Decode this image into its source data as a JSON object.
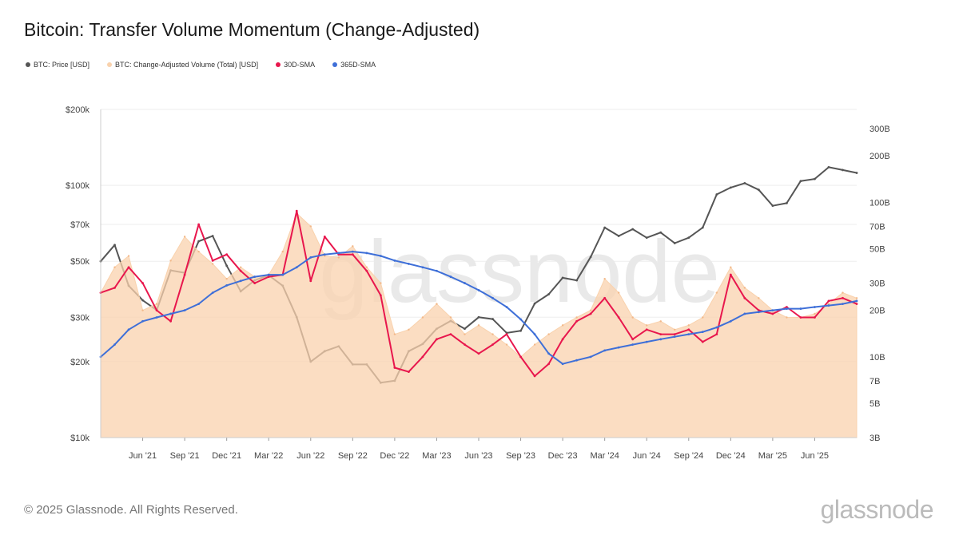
{
  "title": "Bitcoin: Transfer Volume Momentum (Change-Adjusted)",
  "legend": [
    {
      "label": "BTC: Price [USD]",
      "color": "#555555"
    },
    {
      "label": "BTC: Change-Adjusted Volume (Total) [USD]",
      "color": "#f9d2ad"
    },
    {
      "label": "30D-SMA",
      "color": "#e8174d"
    },
    {
      "label": "365D-SMA",
      "color": "#3e6fd8"
    }
  ],
  "footer": "© 2025 Glassnode. All Rights Reserved.",
  "brand": "glassnode",
  "watermark": "glassnode",
  "chart_data": {
    "type": "line",
    "title": "Bitcoin: Transfer Volume Momentum (Change-Adjusted)",
    "x_ticks": [
      "Jun '21",
      "Sep '21",
      "Dec '21",
      "Mar '22",
      "Jun '22",
      "Sep '22",
      "Dec '22",
      "Mar '23",
      "Jun '23",
      "Sep '23",
      "Dec '23",
      "Mar '24",
      "Jun '24",
      "Sep '24",
      "Dec '24",
      "Mar '25",
      "Jun '25"
    ],
    "x_range": [
      "2021-03",
      "2025-09"
    ],
    "y_left": {
      "scale": "log",
      "range": [
        10000,
        200000
      ],
      "ticks": [
        {
          "v": 10000,
          "l": "$10k"
        },
        {
          "v": 20000,
          "l": "$20k"
        },
        {
          "v": 30000,
          "l": "$30k"
        },
        {
          "v": 50000,
          "l": "$50k"
        },
        {
          "v": 70000,
          "l": "$70k"
        },
        {
          "v": 100000,
          "l": "$100k"
        },
        {
          "v": 200000,
          "l": "$200k"
        }
      ]
    },
    "y_right": {
      "scale": "log",
      "range": [
        3,
        400
      ],
      "ticks": [
        {
          "v": 3,
          "l": "3B"
        },
        {
          "v": 5,
          "l": "5B"
        },
        {
          "v": 7,
          "l": "7B"
        },
        {
          "v": 10,
          "l": "10B"
        },
        {
          "v": 20,
          "l": "20B"
        },
        {
          "v": 30,
          "l": "30B"
        },
        {
          "v": 50,
          "l": "50B"
        },
        {
          "v": 70,
          "l": "70B"
        },
        {
          "v": 100,
          "l": "100B"
        },
        {
          "v": 200,
          "l": "200B"
        },
        {
          "v": 300,
          "l": "300B"
        }
      ]
    },
    "grid": true,
    "series": [
      {
        "name": "BTC: Price [USD]",
        "axis": "left",
        "color": "#555555",
        "x": [
          "2021-03",
          "2021-04",
          "2021-05",
          "2021-06",
          "2021-07",
          "2021-08",
          "2021-09",
          "2021-10",
          "2021-11",
          "2021-12",
          "2022-01",
          "2022-02",
          "2022-03",
          "2022-04",
          "2022-05",
          "2022-06",
          "2022-07",
          "2022-08",
          "2022-09",
          "2022-10",
          "2022-11",
          "2022-12",
          "2023-01",
          "2023-02",
          "2023-03",
          "2023-04",
          "2023-05",
          "2023-06",
          "2023-07",
          "2023-08",
          "2023-09",
          "2023-10",
          "2023-11",
          "2023-12",
          "2024-01",
          "2024-02",
          "2024-03",
          "2024-04",
          "2024-05",
          "2024-06",
          "2024-07",
          "2024-08",
          "2024-09",
          "2024-10",
          "2024-11",
          "2024-12",
          "2025-01",
          "2025-02",
          "2025-03",
          "2025-04",
          "2025-05",
          "2025-06",
          "2025-07",
          "2025-08",
          "2025-09"
        ],
        "y": [
          50000,
          58000,
          40000,
          35000,
          32000,
          46000,
          45000,
          60000,
          63000,
          48000,
          38000,
          42000,
          44000,
          40000,
          30000,
          20000,
          22000,
          23000,
          19500,
          19500,
          16500,
          16800,
          22000,
          23500,
          27000,
          29000,
          27000,
          30000,
          29500,
          26000,
          26500,
          34000,
          37000,
          43000,
          42000,
          52000,
          68000,
          63000,
          67000,
          62000,
          65000,
          59000,
          62000,
          68000,
          92000,
          98000,
          102000,
          96000,
          83000,
          85000,
          104000,
          106000,
          118000,
          115000,
          112000
        ]
      },
      {
        "name": "BTC: Change-Adjusted Volume (Total) [USD]",
        "axis": "right",
        "color": "#f9d2ad",
        "x": [
          "2021-03",
          "2021-04",
          "2021-05",
          "2021-06",
          "2021-07",
          "2021-08",
          "2021-09",
          "2021-10",
          "2021-11",
          "2021-12",
          "2022-01",
          "2022-02",
          "2022-03",
          "2022-04",
          "2022-05",
          "2022-06",
          "2022-07",
          "2022-08",
          "2022-09",
          "2022-10",
          "2022-11",
          "2022-12",
          "2023-01",
          "2023-02",
          "2023-03",
          "2023-04",
          "2023-05",
          "2023-06",
          "2023-07",
          "2023-08",
          "2023-09",
          "2023-10",
          "2023-11",
          "2023-12",
          "2024-01",
          "2024-02",
          "2024-03",
          "2024-04",
          "2024-05",
          "2024-06",
          "2024-07",
          "2024-08",
          "2024-09",
          "2024-10",
          "2024-11",
          "2024-12",
          "2025-01",
          "2025-02",
          "2025-03",
          "2025-04",
          "2025-05",
          "2025-06",
          "2025-07",
          "2025-08",
          "2025-09"
        ],
        "y": [
          26,
          38,
          45,
          20,
          22,
          42,
          60,
          48,
          40,
          32,
          38,
          33,
          34,
          48,
          85,
          70,
          45,
          44,
          52,
          38,
          30,
          14,
          15,
          18,
          22,
          18,
          14,
          16,
          14,
          12,
          10,
          12,
          14,
          16,
          18,
          20,
          32,
          26,
          18,
          16,
          17,
          15,
          16,
          18,
          26,
          38,
          28,
          24,
          20,
          18,
          18,
          19,
          22,
          26,
          24
        ]
      },
      {
        "name": "30D-SMA",
        "axis": "right",
        "color": "#e8174d",
        "x": [
          "2021-03",
          "2021-04",
          "2021-05",
          "2021-06",
          "2021-07",
          "2021-08",
          "2021-09",
          "2021-10",
          "2021-11",
          "2021-12",
          "2022-01",
          "2022-02",
          "2022-03",
          "2022-04",
          "2022-05",
          "2022-06",
          "2022-07",
          "2022-08",
          "2022-09",
          "2022-10",
          "2022-11",
          "2022-12",
          "2023-01",
          "2023-02",
          "2023-03",
          "2023-04",
          "2023-05",
          "2023-06",
          "2023-07",
          "2023-08",
          "2023-09",
          "2023-10",
          "2023-11",
          "2023-12",
          "2024-01",
          "2024-02",
          "2024-03",
          "2024-04",
          "2024-05",
          "2024-06",
          "2024-07",
          "2024-08",
          "2024-09",
          "2024-10",
          "2024-11",
          "2024-12",
          "2025-01",
          "2025-02",
          "2025-03",
          "2025-04",
          "2025-05",
          "2025-06",
          "2025-07",
          "2025-08",
          "2025-09"
        ],
        "y": [
          26,
          28,
          38,
          30,
          20,
          17,
          34,
          72,
          42,
          46,
          36,
          30,
          33,
          34,
          88,
          31,
          60,
          46,
          46,
          36,
          25,
          8.5,
          8,
          10,
          13,
          14,
          12,
          10.5,
          12,
          14,
          10,
          7.5,
          9,
          13,
          17,
          19,
          24,
          18,
          13,
          15,
          14,
          14,
          15,
          12.5,
          14,
          34,
          24,
          20,
          19,
          21,
          18,
          18,
          23,
          24,
          22
        ]
      },
      {
        "name": "365D-SMA",
        "axis": "right",
        "color": "#3e6fd8",
        "x": [
          "2021-03",
          "2021-04",
          "2021-05",
          "2021-06",
          "2021-07",
          "2021-08",
          "2021-09",
          "2021-10",
          "2021-11",
          "2021-12",
          "2022-01",
          "2022-02",
          "2022-03",
          "2022-04",
          "2022-05",
          "2022-06",
          "2022-07",
          "2022-08",
          "2022-09",
          "2022-10",
          "2022-11",
          "2022-12",
          "2023-01",
          "2023-02",
          "2023-03",
          "2023-04",
          "2023-05",
          "2023-06",
          "2023-07",
          "2023-08",
          "2023-09",
          "2023-10",
          "2023-11",
          "2023-12",
          "2024-01",
          "2024-02",
          "2024-03",
          "2024-04",
          "2024-05",
          "2024-06",
          "2024-07",
          "2024-08",
          "2024-09",
          "2024-10",
          "2024-11",
          "2024-12",
          "2025-01",
          "2025-02",
          "2025-03",
          "2025-04",
          "2025-05",
          "2025-06",
          "2025-07",
          "2025-08",
          "2025-09"
        ],
        "y": [
          10,
          12,
          15,
          17,
          18,
          19,
          20,
          22,
          26,
          29,
          31,
          33,
          34,
          34,
          38,
          44,
          46,
          47,
          48,
          47,
          45,
          42,
          40,
          38,
          36,
          33,
          30,
          27,
          24,
          21,
          17.5,
          14,
          10.5,
          9,
          9.5,
          10,
          11,
          11.5,
          12,
          12.5,
          13,
          13.5,
          14,
          14.5,
          15.5,
          17,
          19,
          19.5,
          20,
          20.5,
          20.5,
          21,
          21.5,
          22,
          23
        ]
      }
    ]
  }
}
